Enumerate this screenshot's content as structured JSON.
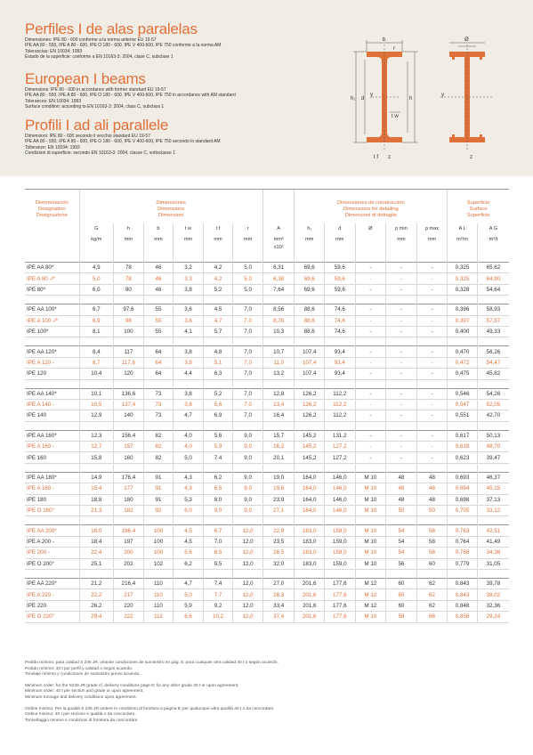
{
  "header": {
    "sections": [
      {
        "title": "Perfiles I de alas paralelas",
        "lines": [
          "Dimensiones: IPE 80 - 600 conforme a la norma anterior EU 19-57",
          "IPE AA 80 - 550, IPE A 80 - 600, IPE O 180 - 600, IPE V 400-600, IPE 750 conforme a la norma AM",
          "Tolerancias: EN 10034: 1993",
          "Estado de la superficie: conforme a EN 10163-3: 2004, clase C, subclase 1"
        ]
      },
      {
        "title": "European I beams",
        "lines": [
          "Dimensions: IPE 80 - 600 in accordance with former standard EU 19-57",
          "IPE AA 80 - 550, IPE A 80 - 600, IPE O 180 - 600, IPE V 400-600, IPE 750 in accordance with AM standard",
          "Tolerances: EN 10034: 1993",
          "Surface condition: according to EN 10163-3: 2004, class C, subclass 1"
        ]
      },
      {
        "title": "Profili I ad ali parallele",
        "lines": [
          "Dimensioni: IPE 80 - 600 secondo il vecchio standard EU 19-57",
          "IPE AA 80 - 550, IPE A 80 - 600, IPE O 180 - 600, IPE V 400-600, IPE 750 secondo lo standard AM",
          "Tolleranze: EN 10034: 1993",
          "Condizioni di superficie: secondo EN 10163-3: 2004, classe C, sottoclasse 1"
        ]
      }
    ],
    "diagram_labels": {
      "b": "b",
      "tf": "t f",
      "tw": "t w",
      "r": "r",
      "h": "h",
      "h1": "h₁",
      "d": "d",
      "y": "y",
      "z": "z",
      "phi": "Ø"
    }
  },
  "table": {
    "groups": {
      "designation": [
        "Denominación",
        "Designation",
        "Designazione"
      ],
      "dimensions": [
        "Dimensiones",
        "Dimensions",
        "Dimensioni"
      ],
      "construction": [
        "Dimensiones de construcción",
        "Dimensions for detailing",
        "Dimensioni di dettaglio"
      ],
      "surface": [
        "Superficie",
        "Surface",
        "Superficie"
      ]
    },
    "symbols": [
      "G",
      "h",
      "b",
      "t w",
      "t f",
      "r",
      "A",
      "h₁",
      "d",
      "Ø",
      "p min",
      "p max",
      "A L",
      "A G"
    ],
    "units": [
      "kg/m",
      "mm",
      "mm",
      "mm",
      "mm",
      "mm",
      "mm²",
      "mm",
      "mm",
      "",
      "mm",
      "mm",
      "m²/m",
      "m²/t"
    ],
    "units2": [
      "",
      "",
      "",
      "",
      "",
      "",
      "x10²",
      "",
      "",
      "",
      "",
      "",
      "",
      ""
    ],
    "groups_rows": [
      [
        {
          "d": "IPE AA 80*",
          "v": [
            "4,9",
            "78",
            "46",
            "3,2",
            "4,2",
            "5,0",
            "6,31",
            "69,6",
            "59,6",
            "-",
            "-",
            "-",
            "0,325",
            "65,62"
          ],
          "hl": false
        },
        {
          "d": "IPE A 80 -/*",
          "v": [
            "5,0",
            "78",
            "46",
            "3,3",
            "4,2",
            "5,0",
            "6,38",
            "69,6",
            "59,6",
            "-",
            "-",
            "-",
            "0,325",
            "64,90"
          ],
          "hl": true
        },
        {
          "d": "IPE 80*",
          "v": [
            "6,0",
            "80",
            "46",
            "3,8",
            "5,2",
            "5,0",
            "7,64",
            "69,6",
            "59,6",
            "-",
            "-",
            "-",
            "0,328",
            "54,64"
          ],
          "hl": false
        }
      ],
      [
        {
          "d": "IPE AA 100*",
          "v": [
            "6,7",
            "97,6",
            "55",
            "3,6",
            "4,5",
            "7,0",
            "8,56",
            "88,6",
            "74,6",
            "-",
            "-",
            "-",
            "0,396",
            "58,93"
          ],
          "hl": false
        },
        {
          "d": "IPE A 100 -/*",
          "v": [
            "6,9",
            "98",
            "55",
            "3,6",
            "4,7",
            "7,0",
            "8,78",
            "88,6",
            "74,6",
            "-",
            "-",
            "-",
            "0,397",
            "57,57"
          ],
          "hl": true
        },
        {
          "d": "IPE 100*",
          "v": [
            "8,1",
            "100",
            "55",
            "4,1",
            "5,7",
            "7,0",
            "10,3",
            "88,6",
            "74,6",
            "-",
            "-",
            "-",
            "0,400",
            "49,33"
          ],
          "hl": false
        }
      ],
      [
        {
          "d": "IPE AA 120*",
          "v": [
            "8,4",
            "117",
            "64",
            "3,8",
            "4,8",
            "7,0",
            "10,7",
            "107,4",
            "93,4",
            "-",
            "-",
            "-",
            "0,470",
            "56,26"
          ],
          "hl": false
        },
        {
          "d": "IPE A 120 -",
          "v": [
            "8,7",
            "117,6",
            "64",
            "3,8",
            "5,1",
            "7,0",
            "11,0",
            "107,4",
            "93,4",
            "-",
            "-",
            "-",
            "0,472",
            "54,47"
          ],
          "hl": true
        },
        {
          "d": "IPE 120",
          "v": [
            "10,4",
            "120",
            "64",
            "4,4",
            "6,3",
            "7,0",
            "13,2",
            "107,4",
            "93,4",
            "-",
            "-",
            "-",
            "0,475",
            "45,82"
          ],
          "hl": false
        }
      ],
      [
        {
          "d": "IPE AA 140*",
          "v": [
            "10,1",
            "136,6",
            "73",
            "3,8",
            "5,2",
            "7,0",
            "12,8",
            "126,2",
            "112,2",
            "-",
            "-",
            "-",
            "0,546",
            "54,26"
          ],
          "hl": false
        },
        {
          "d": "IPE A 140 -",
          "v": [
            "10,5",
            "137,4",
            "73",
            "3,8",
            "5,6",
            "7,0",
            "13,4",
            "126,2",
            "112,2",
            "-",
            "-",
            "-",
            "0,547",
            "52,05"
          ],
          "hl": true
        },
        {
          "d": "IPE 140",
          "v": [
            "12,9",
            "140",
            "73",
            "4,7",
            "6,9",
            "7,0",
            "16,4",
            "126,2",
            "112,2",
            "-",
            "-",
            "-",
            "0,551",
            "42,70"
          ],
          "hl": false
        }
      ],
      [
        {
          "d": "IPE AA 160*",
          "v": [
            "12,3",
            "156,4",
            "82",
            "4,0",
            "5,6",
            "9,0",
            "15,7",
            "145,2",
            "131,2",
            "-",
            "-",
            "-",
            "0,617",
            "50,13"
          ],
          "hl": false
        },
        {
          "d": "IPE A 160 -",
          "v": [
            "12,7",
            "157",
            "82",
            "4,0",
            "5,9",
            "9,0",
            "16,2",
            "145,2",
            "127,2",
            "-",
            "-",
            "-",
            "0,619",
            "48,70"
          ],
          "hl": true
        },
        {
          "d": "IPE 160",
          "v": [
            "15,8",
            "160",
            "82",
            "5,0",
            "7,4",
            "9,0",
            "20,1",
            "145,2",
            "127,2",
            "-",
            "-",
            "-",
            "0,623",
            "39,47"
          ],
          "hl": false
        }
      ],
      [
        {
          "d": "IPE AA 180*",
          "v": [
            "14,9",
            "176,4",
            "91",
            "4,3",
            "6,2",
            "9,0",
            "19,0",
            "164,0",
            "146,0",
            "M 10",
            "48",
            "48",
            "0,693",
            "46,37"
          ],
          "hl": false
        },
        {
          "d": "IPE A 180 -",
          "v": [
            "15,4",
            "177",
            "91",
            "4,3",
            "6,5",
            "9,0",
            "19,6",
            "164,0",
            "146,0",
            "M 10",
            "48",
            "48",
            "0,694",
            "45,15"
          ],
          "hl": true
        },
        {
          "d": "IPE 180",
          "v": [
            "18,8",
            "180",
            "91",
            "5,3",
            "8,0",
            "9,0",
            "23,9",
            "164,0",
            "146,0",
            "M 10",
            "48",
            "48",
            "0,698",
            "37,13"
          ],
          "hl": false
        },
        {
          "d": "IPE O 180°",
          "v": [
            "21,3",
            "182",
            "92",
            "6,0",
            "9,0",
            "9,0",
            "27,1",
            "164,0",
            "146,0",
            "M 10",
            "50",
            "50",
            "0,705",
            "33,12"
          ],
          "hl": true
        }
      ],
      [
        {
          "d": "IPE AA 200*",
          "v": [
            "18,0",
            "196,4",
            "100",
            "4,5",
            "6,7",
            "12,0",
            "22,9",
            "183,0",
            "159,0",
            "M 10",
            "54",
            "58",
            "0,763",
            "42,51"
          ],
          "hl": true
        },
        {
          "d": "IPE A 200 -",
          "v": [
            "18,4",
            "197",
            "100",
            "4,5",
            "7,0",
            "12,0",
            "23,5",
            "183,0",
            "159,0",
            "M 10",
            "54",
            "58",
            "0,764",
            "41,49"
          ],
          "hl": false
        },
        {
          "d": "IPE 200 -",
          "v": [
            "22,4",
            "200",
            "100",
            "5,6",
            "8,5",
            "12,0",
            "28,5",
            "183,0",
            "159,0",
            "M 10",
            "54",
            "58",
            "0,768",
            "34,36"
          ],
          "hl": true
        },
        {
          "d": "IPE O 200°",
          "v": [
            "25,1",
            "202",
            "102",
            "6,2",
            "9,5",
            "12,0",
            "32,0",
            "183,0",
            "159,0",
            "M 10",
            "56",
            "60",
            "0,779",
            "31,05"
          ],
          "hl": false
        }
      ],
      [
        {
          "d": "IPE AA 220*",
          "v": [
            "21,2",
            "216,4",
            "110",
            "4,7",
            "7,4",
            "12,0",
            "27,0",
            "201,6",
            "177,6",
            "M 12",
            "60",
            "62",
            "0,843",
            "39,78"
          ],
          "hl": false
        },
        {
          "d": "IPE A 220 -",
          "v": [
            "22,2",
            "217",
            "110",
            "5,0",
            "7,7",
            "12,0",
            "28,3",
            "201,6",
            "177,6",
            "M 12",
            "60",
            "62",
            "0,843",
            "38,02"
          ],
          "hl": true
        },
        {
          "d": "IPE 220",
          "v": [
            "26,2",
            "220",
            "110",
            "5,9",
            "9,2",
            "12,0",
            "33,4",
            "201,6",
            "177,6",
            "M 12",
            "60",
            "62",
            "0,848",
            "32,36"
          ],
          "hl": false
        },
        {
          "d": "IPE O 220°",
          "v": [
            "29,4",
            "222",
            "112",
            "6,6",
            "10,2",
            "12,0",
            "37,4",
            "201,6",
            "177,6",
            "M 10",
            "58",
            "66",
            "0,858",
            "29,24"
          ],
          "hl": true
        }
      ]
    ]
  },
  "notes": [
    [
      "Pedido mínimo: para calidad S 235 JR, véanse condiciones de suministro en pág. 8; para cualquier otra calidad 40 t o según acuerdo.",
      "Pedido mínimo: 40 t por perfil y calidad o según acuerdo.",
      "Tonelaje mínimo y condiciones de suministro previo acuerdo."
    ],
    [
      "Minimum order: for the S235 JR grade cf. delivery conditions page 8; for any other grade 40 t or upon agreement.",
      "Minimum order: 40 t per section and grade or upon agreement.",
      "Minimum tonnage and delivery conditions upon agreement."
    ],
    [
      "Ordine minimo: Per la qualità S 235 JR vedere le condizioni di fornitura a pagina 8; per qualunque altra qualità 40 t o da concordare.",
      "Ordine minimo: 40 t per sezione e qualità o da concordare.",
      "Tonnellaggio minimo e condizioni di fornitura da concordare."
    ]
  ],
  "colors": {
    "accent": "#e0703a",
    "header_bg": "#f1ede4",
    "beam_fill": "#e0703a"
  },
  "icons": [
    "i-beam-cross-section-icon"
  ]
}
